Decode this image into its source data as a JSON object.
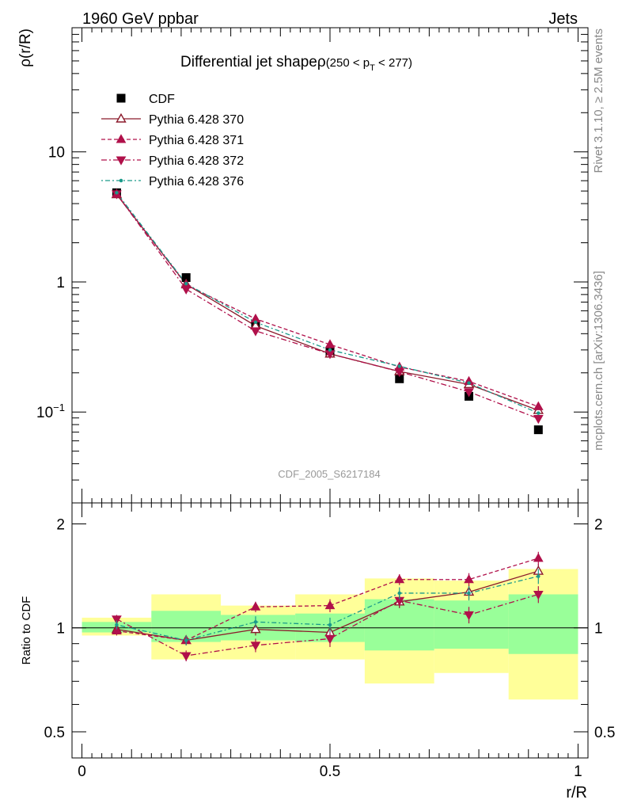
{
  "header": {
    "left_title": "1960 GeV ppbar",
    "right_title": "Jets"
  },
  "side_labels": {
    "rivet": "Rivet 3.1.10, ≥ 2.5M events",
    "source": "mcplots.cern.ch [arXiv:1306.3436]"
  },
  "chart_data": [
    {
      "type": "scatter",
      "panel": "main",
      "title": "Differential jet shapeρ",
      "title_cut": "(250 < p",
      "title_cut_sub": "T",
      "title_cut_end": " < 277)",
      "watermark": "CDF_2005_S6217184",
      "ylabel": "ρ(r/R)",
      "yscale": "log",
      "xlim": [
        -0.02,
        1.02
      ],
      "ylim": [
        0.02,
        90
      ],
      "y_ticks": [
        {
          "v": 10,
          "base": "10",
          "exp": ""
        },
        {
          "v": 1,
          "base": "1",
          "exp": ""
        },
        {
          "v": 0.1,
          "base": "10",
          "exp": "−1"
        }
      ],
      "grid": false,
      "legend_position": "top-left",
      "x": [
        0.07,
        0.21,
        0.35,
        0.5,
        0.64,
        0.78,
        0.92
      ],
      "series": [
        {
          "name": "CDF",
          "color": "#000000",
          "marker": "square",
          "line": "none",
          "values": [
            4.85,
            1.08,
            0.47,
            0.29,
            0.18,
            0.132,
            0.073
          ]
        },
        {
          "name": "Pythia 6.428 370",
          "color": "#8b1a2b",
          "marker": "triangle-up-open",
          "line": "solid",
          "values": [
            4.7,
            0.96,
            0.46,
            0.28,
            0.205,
            0.163,
            0.103
          ]
        },
        {
          "name": "Pythia 6.428 371",
          "color": "#b0104a",
          "marker": "triangle-up",
          "line": "dashed",
          "values": [
            4.75,
            0.95,
            0.52,
            0.33,
            0.222,
            0.172,
            0.11
          ]
        },
        {
          "name": "Pythia 6.428 372",
          "color": "#b0104a",
          "marker": "triangle-down",
          "line": "dashdot",
          "values": [
            4.75,
            0.88,
            0.42,
            0.28,
            0.204,
            0.143,
            0.089
          ]
        },
        {
          "name": "Pythia 6.428 376",
          "color": "#1a9a8a",
          "marker": "circle",
          "line": "dotdash",
          "values": [
            4.85,
            0.97,
            0.49,
            0.3,
            0.225,
            0.167,
            0.098
          ]
        }
      ]
    },
    {
      "type": "scatter",
      "panel": "ratio",
      "ylabel": "Ratio to CDF",
      "xlabel": "r/R",
      "yscale": "log",
      "xlim": [
        -0.02,
        1.02
      ],
      "ylim": [
        0.42,
        2.3
      ],
      "y_ticks": [
        {
          "v": 0.5,
          "label": "0.5"
        },
        {
          "v": 1,
          "label": "1"
        },
        {
          "v": 2,
          "label": "2"
        }
      ],
      "x_ticks": [
        {
          "v": 0,
          "label": "0"
        },
        {
          "v": 0.5,
          "label": "0.5"
        },
        {
          "v": 1,
          "label": "1"
        }
      ],
      "bins": [
        [
          0.0,
          0.14
        ],
        [
          0.14,
          0.28
        ],
        [
          0.28,
          0.43
        ],
        [
          0.43,
          0.57
        ],
        [
          0.57,
          0.71
        ],
        [
          0.71,
          0.86
        ],
        [
          0.86,
          1.0
        ]
      ],
      "band_inner": [
        [
          0.97,
          1.04
        ],
        [
          0.91,
          1.12
        ],
        [
          0.92,
          1.09
        ],
        [
          0.91,
          1.1
        ],
        [
          0.86,
          1.21
        ],
        [
          0.87,
          1.2
        ],
        [
          0.84,
          1.25
        ]
      ],
      "band_outer": [
        [
          0.95,
          1.07
        ],
        [
          0.81,
          1.25
        ],
        [
          0.81,
          1.16
        ],
        [
          0.81,
          1.25
        ],
        [
          0.69,
          1.39
        ],
        [
          0.74,
          1.37
        ],
        [
          0.62,
          1.48
        ]
      ],
      "x": [
        0.07,
        0.21,
        0.35,
        0.5,
        0.64,
        0.78,
        0.92
      ],
      "series": [
        {
          "name": "Pythia 6.428 370",
          "color": "#8b1a2b",
          "marker": "triangle-up-open",
          "line": "solid",
          "values": [
            0.99,
            0.92,
            0.99,
            0.97,
            1.19,
            1.27,
            1.46
          ],
          "err": [
            0.03,
            0.03,
            0.04,
            0.05,
            0.05,
            0.06,
            0.07
          ]
        },
        {
          "name": "Pythia 6.428 371",
          "color": "#b0104a",
          "marker": "triangle-up",
          "line": "dashed",
          "values": [
            0.98,
            0.92,
            1.15,
            1.16,
            1.38,
            1.38,
            1.59
          ],
          "err": [
            0.03,
            0.03,
            0.04,
            0.05,
            0.05,
            0.06,
            0.07
          ]
        },
        {
          "name": "Pythia 6.428 372",
          "color": "#b0104a",
          "marker": "triangle-down",
          "line": "dashdot",
          "values": [
            1.06,
            0.83,
            0.89,
            0.93,
            1.2,
            1.09,
            1.25
          ],
          "err": [
            0.03,
            0.03,
            0.04,
            0.05,
            0.05,
            0.06,
            0.07
          ]
        },
        {
          "name": "Pythia 6.428 376",
          "color": "#1a9a8a",
          "marker": "circle",
          "line": "dotdash",
          "values": [
            1.02,
            0.92,
            1.04,
            1.02,
            1.26,
            1.26,
            1.41
          ],
          "err": [
            0.03,
            0.03,
            0.04,
            0.05,
            0.05,
            0.06,
            0.07
          ]
        }
      ]
    }
  ]
}
